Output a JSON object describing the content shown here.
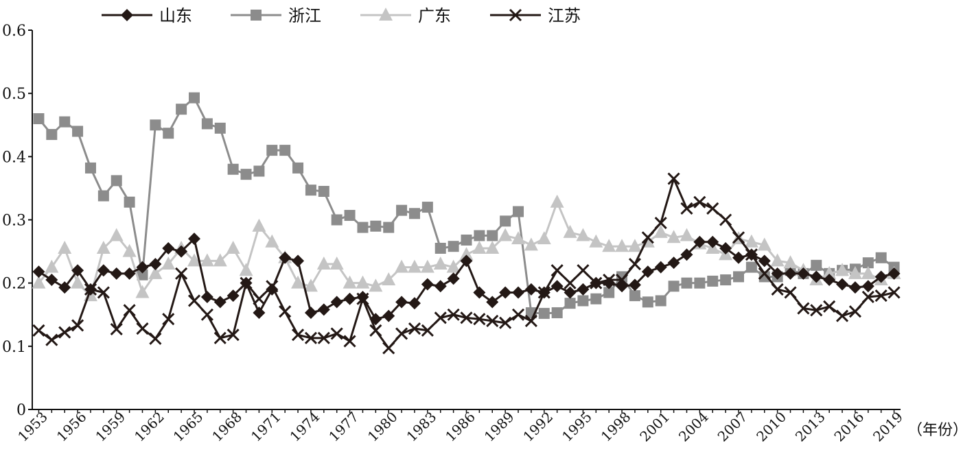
{
  "chart_data": {
    "type": "line",
    "xlabel": "（年份）",
    "ylabel": "",
    "ylim": [
      0,
      0.6
    ],
    "yticks": [
      "0",
      "0.1",
      "0.2",
      "0.3",
      "0.4",
      "0.5",
      "0.6"
    ],
    "xticks": [
      "1953",
      "1956",
      "1959",
      "1962",
      "1965",
      "1968",
      "1971",
      "1974",
      "1977",
      "1980",
      "1983",
      "1986",
      "1989",
      "1992",
      "1995",
      "1998",
      "2001",
      "2004",
      "2007",
      "2010",
      "2013",
      "2016",
      "2019"
    ],
    "x_start": 1953,
    "x_end": 2019,
    "legend_position": "top",
    "series": [
      {
        "name": "山东",
        "color": "#231815",
        "marker": "diamond",
        "values": [
          0.218,
          0.205,
          0.193,
          0.22,
          0.19,
          0.22,
          0.215,
          0.215,
          0.225,
          0.23,
          0.255,
          0.25,
          0.27,
          0.178,
          0.17,
          0.18,
          0.2,
          0.153,
          0.19,
          0.24,
          0.235,
          0.153,
          0.158,
          0.17,
          0.175,
          0.178,
          0.143,
          0.148,
          0.17,
          0.168,
          0.198,
          0.195,
          0.207,
          0.235,
          0.185,
          0.17,
          0.185,
          0.185,
          0.19,
          0.185,
          0.195,
          0.185,
          0.19,
          0.2,
          0.2,
          0.195,
          0.197,
          0.218,
          0.225,
          0.232,
          0.245,
          0.265,
          0.265,
          0.255,
          0.24,
          0.245,
          0.235,
          0.215,
          0.215,
          0.215,
          0.21,
          0.205,
          0.198,
          0.193,
          0.195,
          0.21,
          0.215
        ]
      },
      {
        "name": "浙江",
        "color": "#8c8c8c",
        "marker": "square",
        "values": [
          0.46,
          0.435,
          0.455,
          0.44,
          0.382,
          0.338,
          0.362,
          0.328,
          0.213,
          0.45,
          0.437,
          0.475,
          0.493,
          0.452,
          0.445,
          0.38,
          0.372,
          0.377,
          0.41,
          0.41,
          0.382,
          0.347,
          0.345,
          0.3,
          0.307,
          0.288,
          0.29,
          0.288,
          0.315,
          0.31,
          0.32,
          0.255,
          0.258,
          0.268,
          0.275,
          0.275,
          0.298,
          0.313,
          0.153,
          0.152,
          0.153,
          0.168,
          0.172,
          0.175,
          0.185,
          0.21,
          0.18,
          0.17,
          0.172,
          0.195,
          0.2,
          0.2,
          0.203,
          0.205,
          0.21,
          0.225,
          0.21,
          0.21,
          0.22,
          0.215,
          0.228,
          0.215,
          0.22,
          0.222,
          0.232,
          0.24,
          0.225
        ]
      },
      {
        "name": "广东",
        "color": "#c4c4c4",
        "marker": "triangle",
        "values": [
          0.2,
          0.225,
          0.255,
          0.2,
          0.18,
          0.255,
          0.275,
          0.25,
          0.185,
          0.215,
          0.23,
          0.255,
          0.235,
          0.235,
          0.235,
          0.255,
          0.22,
          0.29,
          0.265,
          0.24,
          0.2,
          0.195,
          0.23,
          0.23,
          0.2,
          0.2,
          0.195,
          0.205,
          0.225,
          0.225,
          0.225,
          0.23,
          0.225,
          0.245,
          0.255,
          0.255,
          0.275,
          0.27,
          0.26,
          0.27,
          0.328,
          0.28,
          0.275,
          0.265,
          0.258,
          0.258,
          0.258,
          0.265,
          0.28,
          0.272,
          0.275,
          0.262,
          0.255,
          0.245,
          0.27,
          0.265,
          0.26,
          0.235,
          0.232,
          0.22,
          0.205,
          0.215,
          0.22,
          0.215,
          0.215,
          0.205,
          0.215
        ]
      },
      {
        "name": "江苏",
        "color": "#231815",
        "marker": "x",
        "values": [
          0.125,
          0.11,
          0.122,
          0.133,
          0.19,
          0.185,
          0.127,
          0.157,
          0.128,
          0.112,
          0.143,
          0.215,
          0.172,
          0.15,
          0.113,
          0.118,
          0.2,
          0.175,
          0.195,
          0.155,
          0.118,
          0.113,
          0.113,
          0.12,
          0.108,
          0.175,
          0.125,
          0.097,
          0.12,
          0.128,
          0.125,
          0.145,
          0.15,
          0.145,
          0.143,
          0.14,
          0.137,
          0.15,
          0.14,
          0.185,
          0.22,
          0.2,
          0.22,
          0.2,
          0.205,
          0.205,
          0.23,
          0.272,
          0.295,
          0.365,
          0.318,
          0.328,
          0.318,
          0.3,
          0.272,
          0.245,
          0.215,
          0.19,
          0.185,
          0.16,
          0.157,
          0.163,
          0.148,
          0.155,
          0.178,
          0.18,
          0.185
        ]
      }
    ]
  }
}
